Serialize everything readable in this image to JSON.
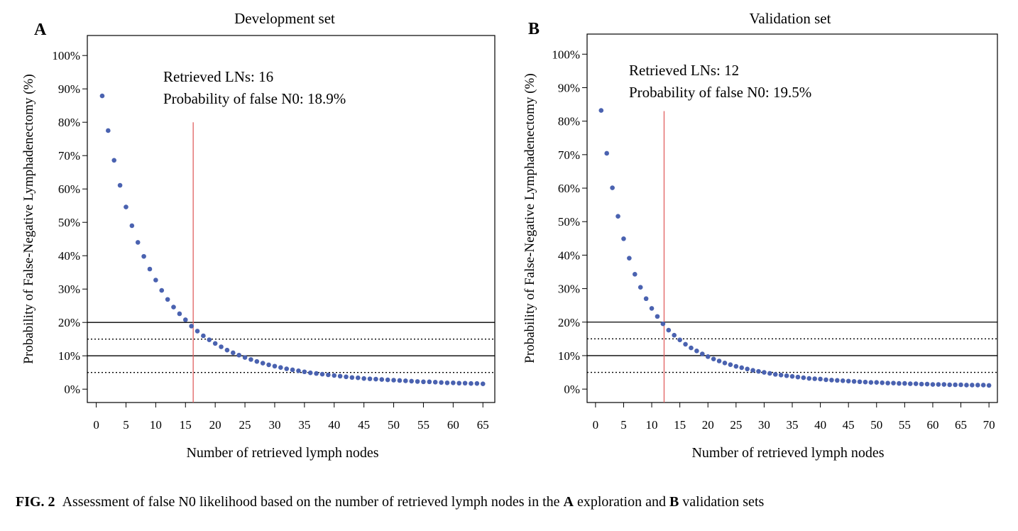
{
  "chart_data": [
    {
      "type": "scatter",
      "panel_label": "A",
      "title": "Development set",
      "xlabel": "Number of retrieved lymph nodes",
      "ylabel": "Probability of False-Negative Lymphadenectomy (%)",
      "xlim": [
        -1.5,
        67
      ],
      "ylim": [
        -4,
        106
      ],
      "xticks": [
        0,
        5,
        10,
        15,
        20,
        25,
        30,
        35,
        40,
        45,
        50,
        55,
        60,
        65
      ],
      "yticks": [
        0,
        10,
        20,
        30,
        40,
        50,
        60,
        70,
        80,
        90,
        100
      ],
      "ytick_labels": [
        "0%",
        "10%",
        "20%",
        "30%",
        "40%",
        "50%",
        "60%",
        "70%",
        "80%",
        "90%",
        "100%"
      ],
      "grid": false,
      "series": [
        {
          "color": "#4a62b0",
          "x": [
            1,
            2,
            3,
            4,
            5,
            6,
            7,
            8,
            9,
            10,
            11,
            12,
            13,
            14,
            15,
            16,
            17,
            18,
            19,
            20,
            21,
            22,
            23,
            24,
            25,
            26,
            27,
            28,
            29,
            30,
            31,
            32,
            33,
            34,
            35,
            36,
            37,
            38,
            39,
            40,
            41,
            42,
            43,
            44,
            45,
            46,
            47,
            48,
            49,
            50,
            51,
            52,
            53,
            54,
            55,
            56,
            57,
            58,
            59,
            60,
            61,
            62,
            63,
            64,
            65
          ],
          "y": [
            87.9,
            77.5,
            68.6,
            61.1,
            54.6,
            49.0,
            44.0,
            39.8,
            36.0,
            32.7,
            29.6,
            26.9,
            24.6,
            22.6,
            20.8,
            18.9,
            17.4,
            16.0,
            14.8,
            13.7,
            12.7,
            11.7,
            10.9,
            10.2,
            9.5,
            8.9,
            8.3,
            7.8,
            7.3,
            6.9,
            6.5,
            6.1,
            5.8,
            5.5,
            5.2,
            4.9,
            4.7,
            4.5,
            4.3,
            4.1,
            3.9,
            3.7,
            3.5,
            3.4,
            3.2,
            3.1,
            3.0,
            2.9,
            2.8,
            2.7,
            2.6,
            2.5,
            2.4,
            2.3,
            2.2,
            2.2,
            2.1,
            2.0,
            1.9,
            1.9,
            1.8,
            1.8,
            1.7,
            1.7,
            1.6
          ]
        }
      ],
      "reference_lines": [
        {
          "y": 20,
          "style": "solid",
          "color": "#000000"
        },
        {
          "y": 15,
          "style": "dotted",
          "color": "#000000"
        },
        {
          "y": 10,
          "style": "solid",
          "color": "#000000"
        },
        {
          "y": 5,
          "style": "dotted",
          "color": "#000000"
        }
      ],
      "cutoff": {
        "x": 16.3,
        "y_top": 80,
        "color": "#e06060"
      },
      "annotation": [
        "Retrieved LNs: 16",
        "Probability of false N0: 18.9%"
      ]
    },
    {
      "type": "scatter",
      "panel_label": "B",
      "title": "Validation set",
      "xlabel": "Number of retrieved lymph nodes",
      "ylabel": "Probability of False-Negative Lymphadenectomy (%)",
      "xlim": [
        -1.5,
        71.5
      ],
      "ylim": [
        -4,
        106
      ],
      "xticks": [
        0,
        5,
        10,
        15,
        20,
        25,
        30,
        35,
        40,
        45,
        50,
        55,
        60,
        65,
        70
      ],
      "yticks": [
        0,
        10,
        20,
        30,
        40,
        50,
        60,
        70,
        80,
        90,
        100
      ],
      "ytick_labels": [
        "0%",
        "10%",
        "20%",
        "30%",
        "40%",
        "50%",
        "60%",
        "70%",
        "80%",
        "90%",
        "100%"
      ],
      "grid": false,
      "series": [
        {
          "color": "#4a62b0",
          "x": [
            1,
            2,
            3,
            4,
            5,
            6,
            7,
            8,
            9,
            10,
            11,
            12,
            13,
            14,
            15,
            16,
            17,
            18,
            19,
            20,
            21,
            22,
            23,
            24,
            25,
            26,
            27,
            28,
            29,
            30,
            31,
            32,
            33,
            34,
            35,
            36,
            37,
            38,
            39,
            40,
            41,
            42,
            43,
            44,
            45,
            46,
            47,
            48,
            49,
            50,
            51,
            52,
            53,
            54,
            55,
            56,
            57,
            58,
            59,
            60,
            61,
            62,
            63,
            64,
            65,
            66,
            67,
            68,
            69,
            70
          ],
          "y": [
            83.2,
            70.4,
            60.1,
            51.6,
            44.9,
            39.1,
            34.3,
            30.4,
            27.0,
            24.1,
            21.7,
            19.5,
            17.6,
            16.1,
            14.7,
            13.4,
            12.3,
            11.4,
            10.5,
            9.7,
            9.0,
            8.4,
            7.8,
            7.3,
            6.8,
            6.4,
            6.0,
            5.6,
            5.3,
            5.0,
            4.7,
            4.4,
            4.2,
            4.0,
            3.8,
            3.6,
            3.4,
            3.2,
            3.1,
            3.0,
            2.8,
            2.7,
            2.6,
            2.5,
            2.4,
            2.3,
            2.2,
            2.1,
            2.0,
            2.0,
            1.9,
            1.8,
            1.8,
            1.7,
            1.7,
            1.6,
            1.6,
            1.5,
            1.5,
            1.4,
            1.4,
            1.4,
            1.3,
            1.3,
            1.3,
            1.2,
            1.2,
            1.2,
            1.2,
            1.1
          ]
        }
      ],
      "reference_lines": [
        {
          "y": 20,
          "style": "solid",
          "color": "#000000"
        },
        {
          "y": 15,
          "style": "dotted",
          "color": "#000000"
        },
        {
          "y": 10,
          "style": "solid",
          "color": "#000000"
        },
        {
          "y": 5,
          "style": "dotted",
          "color": "#000000"
        }
      ],
      "cutoff": {
        "x": 12.2,
        "y_top": 83,
        "color": "#e06060"
      },
      "annotation": [
        "Retrieved LNs: 12",
        "Probability of false N0: 19.5%"
      ]
    }
  ],
  "caption": {
    "fig_label": "FIG. 2",
    "text_1": "Assessment of false N0 likelihood based on the number of retrieved lymph nodes in the ",
    "bold_a": "A",
    "text_2": " exploration and ",
    "bold_b": "B",
    "text_3": " validation sets"
  }
}
